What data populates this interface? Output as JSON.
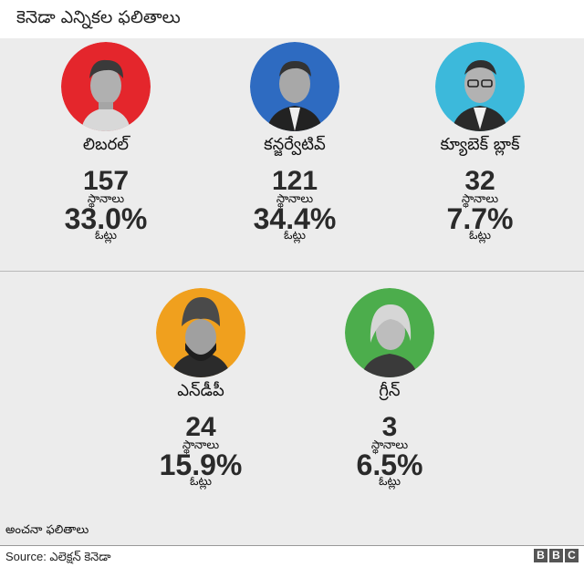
{
  "title": "కెనెడా ఎన్నికల ఫలితాలు",
  "parties": [
    {
      "name": "లిబరల్",
      "seats": "157",
      "seats_label": "స్థానాలు",
      "pct": "33.0%",
      "votes_label": "ఓట్లు",
      "color": "#e4262c"
    },
    {
      "name": "కన్జర్వేటివ్",
      "seats": "121",
      "seats_label": "స్థానాలు",
      "pct": "34.4%",
      "votes_label": "ఓట్లు",
      "color": "#2e6bc1"
    },
    {
      "name": "క్యూబెక్ బ్లాక్",
      "seats": "32",
      "seats_label": "స్థానాలు",
      "pct": "7.7%",
      "votes_label": "ఓట్లు",
      "color": "#3cb9db"
    },
    {
      "name": "ఎన్‌డీపీ",
      "seats": "24",
      "seats_label": "స్థానాలు",
      "pct": "15.9%",
      "votes_label": "ఓట్లు",
      "color": "#f0a01e"
    },
    {
      "name": "గ్రీన్",
      "seats": "3",
      "seats_label": "స్థానాలు",
      "pct": "6.5%",
      "votes_label": "ఓట్లు",
      "color": "#4cad4c"
    }
  ],
  "footnote": "అంచనా ఫలితాలు",
  "source": "Source: ఎలెక్షన్ కెనెడా",
  "logo": [
    "B",
    "B",
    "C"
  ]
}
